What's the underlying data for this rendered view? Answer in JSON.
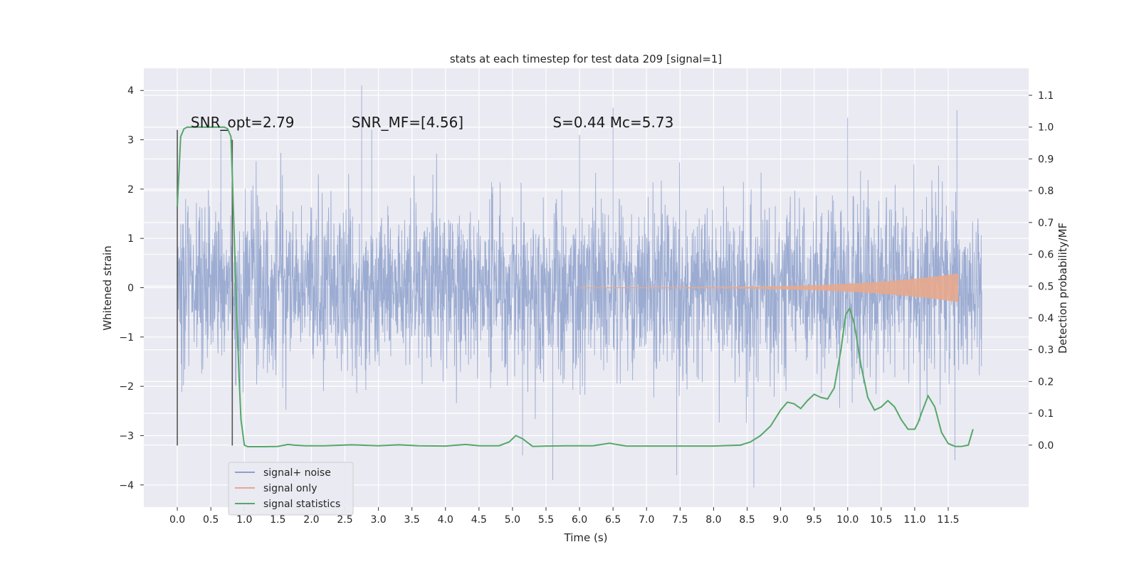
{
  "chart_data": {
    "type": "line",
    "title": "stats at each timestep for test data 209 [signal=1]",
    "xlabel": "Time (s)",
    "ylabel": "Whitened strain",
    "y2label": "Detection probability/MF",
    "xlim": [
      -0.5,
      12.7
    ],
    "ylim": [
      -4.45,
      4.45
    ],
    "y2lim": [
      -0.195,
      1.185
    ],
    "x_ticks": [
      0.0,
      0.5,
      1.0,
      1.5,
      2.0,
      2.5,
      3.0,
      3.5,
      4.0,
      4.5,
      5.0,
      5.5,
      6.0,
      6.5,
      7.0,
      7.5,
      8.0,
      8.5,
      9.0,
      9.5,
      10.0,
      10.5,
      11.0,
      11.5
    ],
    "x_tick_labels": [
      "0.0",
      "0.5",
      "1.0",
      "1.5",
      "2.0",
      "2.5",
      "3.0",
      "3.5",
      "4.0",
      "4.5",
      "5.0",
      "5.5",
      "6.0",
      "6.5",
      "7.0",
      "7.5",
      "8.0",
      "8.5",
      "9.0",
      "9.5",
      "10.0",
      "10.5",
      "11.0",
      "11.5"
    ],
    "y_ticks": [
      -4,
      -3,
      -2,
      -1,
      0,
      1,
      2,
      3,
      4
    ],
    "y_tick_labels": [
      "−4",
      "−3",
      "−2",
      "−1",
      "0",
      "1",
      "2",
      "3",
      "4"
    ],
    "y2_ticks": [
      0.0,
      0.1,
      0.2,
      0.3,
      0.4,
      0.5,
      0.6,
      0.7,
      0.8,
      0.9,
      1.0,
      1.1
    ],
    "y2_tick_labels": [
      "0.0",
      "0.1",
      "0.2",
      "0.3",
      "0.4",
      "0.5",
      "0.6",
      "0.7",
      "0.8",
      "0.9",
      "1.0",
      "1.1"
    ],
    "grid": true,
    "legend_position": "lower-left",
    "background_color": "#eaeaf2",
    "series": [
      {
        "name": "signal+ noise",
        "axis": "left",
        "color": "#8da0cb",
        "t_range": [
          0.0,
          12.0
        ],
        "sample_rate_hz": 250,
        "core_band": [
          -1.3,
          1.3
        ],
        "typical_band": [
          -2.0,
          2.0
        ],
        "max_value": 4.1,
        "min_value": -4.05,
        "spikes": [
          [
            2.75,
            4.1
          ],
          [
            6.5,
            3.65
          ],
          [
            10.0,
            3.45
          ],
          [
            11.63,
            3.6
          ],
          [
            2.9,
            3.2
          ],
          [
            0.65,
            3.2
          ],
          [
            6.0,
            3.1
          ],
          [
            8.6,
            -4.05
          ],
          [
            5.6,
            -3.9
          ],
          [
            7.45,
            -3.8
          ],
          [
            11.6,
            -3.5
          ],
          [
            5.15,
            -3.4
          ]
        ]
      },
      {
        "name": "signal only",
        "axis": "left",
        "color": "#e8a88c",
        "t_range": [
          6.0,
          11.65
        ],
        "envelope_end": 0.28
      },
      {
        "name": "signal statistics",
        "axis": "right",
        "color": "#55a868",
        "x": [
          0.0,
          0.05,
          0.1,
          0.15,
          0.2,
          0.3,
          0.45,
          0.6,
          0.7,
          0.75,
          0.8,
          0.82,
          0.85,
          0.88,
          0.92,
          0.95,
          1.0,
          1.05,
          1.15,
          1.3,
          1.5,
          1.65,
          1.75,
          1.9,
          2.2,
          2.6,
          3.0,
          3.3,
          3.6,
          4.0,
          4.3,
          4.5,
          4.8,
          4.95,
          5.05,
          5.15,
          5.3,
          5.5,
          5.8,
          6.2,
          6.45,
          6.55,
          6.7,
          7.0,
          7.5,
          8.0,
          8.4,
          8.55,
          8.7,
          8.85,
          9.0,
          9.1,
          9.2,
          9.3,
          9.4,
          9.5,
          9.6,
          9.7,
          9.8,
          9.9,
          9.97,
          10.03,
          10.1,
          10.2,
          10.3,
          10.4,
          10.5,
          10.6,
          10.7,
          10.8,
          10.9,
          11.0,
          11.05,
          11.1,
          11.2,
          11.3,
          11.4,
          11.5,
          11.6,
          11.7,
          11.8,
          11.87
        ],
        "values": [
          0.75,
          0.97,
          0.995,
          1.0,
          1.0,
          1.0,
          1.0,
          1.0,
          1.0,
          0.995,
          0.97,
          0.85,
          0.65,
          0.45,
          0.22,
          0.08,
          0.0,
          -0.005,
          -0.005,
          -0.005,
          -0.004,
          0.002,
          0.0,
          -0.002,
          -0.002,
          0.001,
          -0.002,
          0.001,
          -0.002,
          -0.003,
          0.002,
          -0.002,
          -0.002,
          0.01,
          0.03,
          0.02,
          -0.004,
          -0.003,
          -0.002,
          -0.002,
          0.006,
          0.002,
          -0.003,
          -0.003,
          -0.003,
          -0.003,
          0.0,
          0.01,
          0.03,
          0.06,
          0.11,
          0.135,
          0.13,
          0.115,
          0.14,
          0.16,
          0.15,
          0.145,
          0.18,
          0.3,
          0.41,
          0.43,
          0.38,
          0.25,
          0.15,
          0.11,
          0.12,
          0.14,
          0.12,
          0.08,
          0.05,
          0.05,
          0.07,
          0.1,
          0.155,
          0.12,
          0.04,
          0.005,
          -0.004,
          -0.004,
          0.0,
          0.05
        ]
      }
    ],
    "vertical_markers": [
      {
        "x": 0.0,
        "y_from": -3.2,
        "y_to": 3.2,
        "color": "#555555"
      },
      {
        "x": 0.82,
        "y_from": -3.2,
        "y_to": 3.0,
        "color": "#555555"
      }
    ],
    "annotations": [
      {
        "id": "snr-opt",
        "text": "SNR_opt=2.79",
        "x": 0.2,
        "y": 3.25,
        "italic": false
      },
      {
        "id": "snr-mf",
        "text": "SNR_MF=[4.56]",
        "x": 2.6,
        "y": 3.25,
        "italic": true
      },
      {
        "id": "s-mc",
        "text": "S=0.44   Mc=5.73",
        "x": 5.6,
        "y": 3.25,
        "italic": true
      }
    ]
  }
}
